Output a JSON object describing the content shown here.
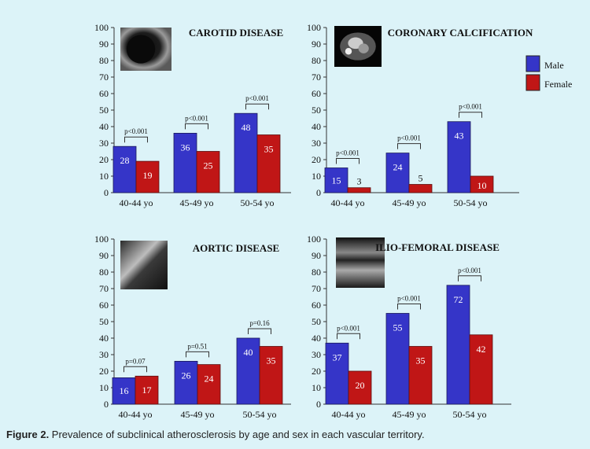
{
  "figure": {
    "caption_label": "Figure 2.",
    "caption_text": " Prevalence of subclinical atherosclerosis by age and sex in each vascular territory."
  },
  "colors": {
    "male": "#3535c8",
    "female": "#c01616",
    "background": "#dcf3f8"
  },
  "legend": {
    "male": "Male",
    "female": "Female"
  },
  "chart_data": [
    {
      "type": "bar",
      "title": "CAROTID DISEASE",
      "categories": [
        "40-44 yo",
        "45-49 yo",
        "50-54 yo"
      ],
      "series": [
        {
          "name": "Male",
          "values": [
            28,
            36,
            48
          ]
        },
        {
          "name": "Female",
          "values": [
            19,
            25,
            35
          ]
        }
      ],
      "pvalues": [
        "p<0.001",
        "p<0.001",
        "p<0.001"
      ],
      "ylim": [
        0,
        100
      ],
      "yticks": [
        0,
        10,
        20,
        30,
        40,
        50,
        60,
        70,
        80,
        90,
        100
      ],
      "thumbnail": "ultrasound-thumbnail"
    },
    {
      "type": "bar",
      "title": "CORONARY CALCIFICATION",
      "categories": [
        "40-44 yo",
        "45-49 yo",
        "50-54 yo"
      ],
      "series": [
        {
          "name": "Male",
          "values": [
            15,
            24,
            43
          ]
        },
        {
          "name": "Female",
          "values": [
            3,
            5,
            10
          ]
        }
      ],
      "pvalues": [
        "p<0.001",
        "p<0.001",
        "p<0.001"
      ],
      "ylim": [
        0,
        100
      ],
      "yticks": [
        0,
        10,
        20,
        30,
        40,
        50,
        60,
        70,
        80,
        90,
        100
      ],
      "thumbnail": "ct-scan-thumbnail",
      "legend": "top-right"
    },
    {
      "type": "bar",
      "title": "AORTIC DISEASE",
      "categories": [
        "40-44 yo",
        "45-49 yo",
        "50-54 yo"
      ],
      "series": [
        {
          "name": "Male",
          "values": [
            16,
            26,
            40
          ]
        },
        {
          "name": "Female",
          "values": [
            17,
            24,
            35
          ]
        }
      ],
      "pvalues": [
        "p=0.07",
        "p=0.51",
        "p=0.16"
      ],
      "ylim": [
        0,
        100
      ],
      "yticks": [
        0,
        10,
        20,
        30,
        40,
        50,
        60,
        70,
        80,
        90,
        100
      ],
      "thumbnail": "ultrasound-thumbnail"
    },
    {
      "type": "bar",
      "title": "ILIO-FEMORAL DISEASE",
      "categories": [
        "40-44 yo",
        "45-49 yo",
        "50-54 yo"
      ],
      "series": [
        {
          "name": "Male",
          "values": [
            37,
            55,
            72
          ]
        },
        {
          "name": "Female",
          "values": [
            20,
            35,
            42
          ]
        }
      ],
      "pvalues": [
        "p<0.001",
        "p<0.001",
        "p<0.001"
      ],
      "ylim": [
        0,
        100
      ],
      "yticks": [
        0,
        10,
        20,
        30,
        40,
        50,
        60,
        70,
        80,
        90,
        100
      ],
      "thumbnail": "ultrasound-thumbnail"
    }
  ]
}
